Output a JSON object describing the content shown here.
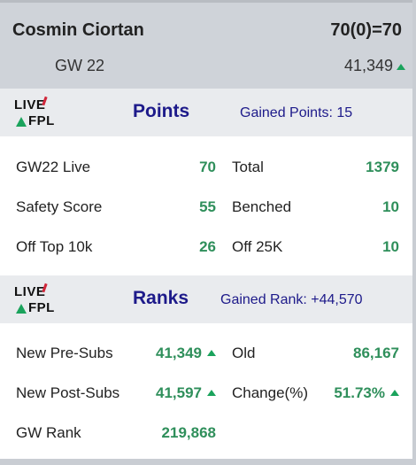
{
  "header": {
    "name": "Cosmin Ciortan",
    "score": "70(0)=70",
    "gw": "GW 22",
    "rank": "41,349"
  },
  "logo": {
    "line1": "LIVE",
    "line2": "FPL"
  },
  "points": {
    "title": "Points",
    "gained": "Gained Points: 15",
    "rows": [
      {
        "l1": "GW22 Live",
        "v1": "70",
        "l2": "Total",
        "v2": "1379"
      },
      {
        "l1": "Safety Score",
        "v1": "55",
        "l2": "Benched",
        "v2": "10"
      },
      {
        "l1": "Off Top 10k",
        "v1": "26",
        "l2": "Off 25K",
        "v2": "10"
      }
    ]
  },
  "ranks": {
    "title": "Ranks",
    "gained": "Gained Rank: +44,570",
    "rows": [
      {
        "l1": "New Pre-Subs",
        "v1": "41,349",
        "l2": "Old",
        "v2": "86,167"
      },
      {
        "l1": "New Post-Subs",
        "v1": "41,597",
        "l2": "Change(%)",
        "v2": "51.73%"
      },
      {
        "l1": "GW Rank",
        "v1": "219,868"
      }
    ]
  },
  "colors": {
    "accent_green": "#2f8f5b",
    "title_blue": "#1d1a8a",
    "arrow_green": "#1aa35c"
  },
  "icons": [
    "up-arrow-icon",
    "livefpl-logo"
  ]
}
